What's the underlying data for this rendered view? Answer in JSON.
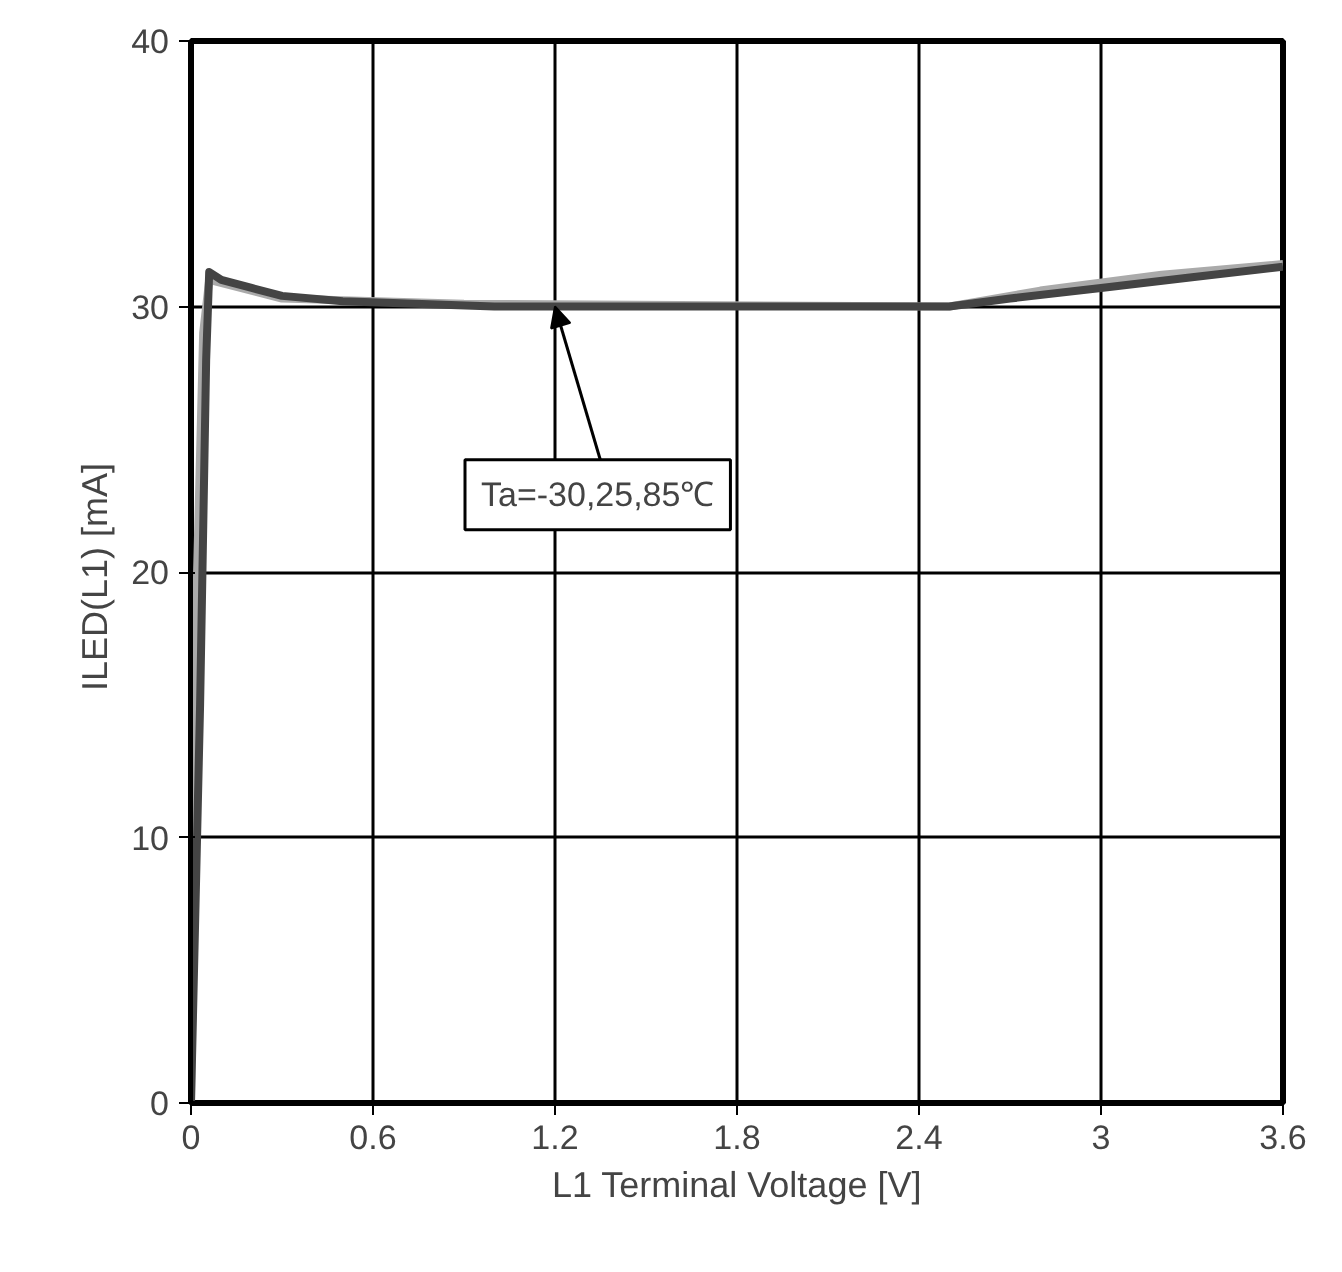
{
  "chart_data": {
    "type": "line",
    "xlabel": "L1 Terminal Voltage [V]",
    "ylabel": "ILED(L1)  [mA]",
    "xlim": [
      0,
      3.6
    ],
    "ylim": [
      0,
      40
    ],
    "xticks": [
      0,
      0.6,
      1.2,
      1.8,
      2.4,
      3,
      3.6
    ],
    "yticks": [
      0,
      10,
      20,
      30,
      40
    ],
    "grid": true,
    "series": [
      {
        "color": "#aaaaaa",
        "x": [
          0,
          0.02,
          0.04,
          0.06,
          0.3,
          0.9,
          2.5,
          2.8,
          3.2,
          3.6
        ],
        "values": [
          0,
          20,
          29,
          31,
          30.3,
          30.1,
          30,
          30.6,
          31.2,
          31.6
        ]
      },
      {
        "color": "#444444",
        "x": [
          0,
          0.03,
          0.05,
          0.06,
          0.1,
          0.2,
          0.3,
          0.5,
          1,
          2.5,
          2.7,
          3,
          3.3,
          3.6
        ],
        "values": [
          0,
          15,
          28,
          31.3,
          31,
          30.7,
          30.4,
          30.2,
          30,
          30,
          30.3,
          30.7,
          31.1,
          31.5
        ]
      }
    ],
    "annotations": [
      {
        "text": "Ta=-30,25,85℃",
        "x": 1.2,
        "y": 30
      }
    ]
  }
}
